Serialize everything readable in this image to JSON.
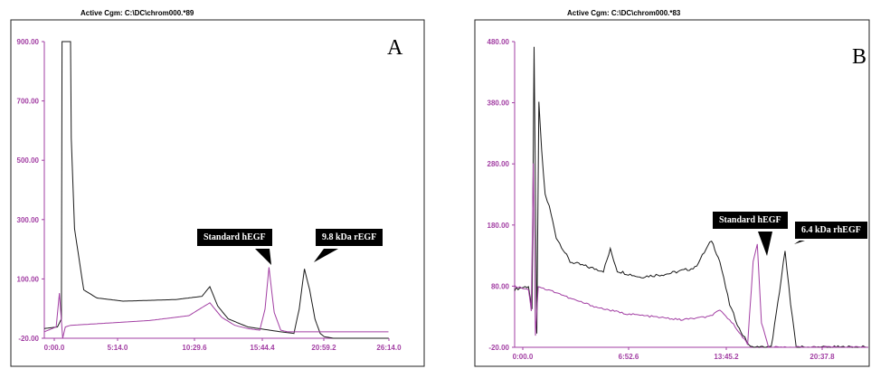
{
  "chart_data": [
    {
      "type": "line",
      "panel_label": "A",
      "header": "Active Cgm: C:\\DC\\chrom000.*89",
      "y_ticks": [
        "900.00",
        "700.00",
        "500.00",
        "300.00",
        "100.00",
        "-20.00"
      ],
      "x_ticks": [
        "0:00.0",
        "5:14.0",
        "10:29.6",
        "15:44.4",
        "20:59.2",
        "26:14.0"
      ],
      "ylim": [
        -20,
        900
      ],
      "xlim": [
        0,
        26.233
      ],
      "annotations": [
        "Standard hEGF",
        "9.8 kDa rEGF"
      ],
      "series": [
        {
          "color": "#1a1a1a",
          "x": [
            0,
            1.0,
            1.3,
            1.35,
            2.0,
            2.05,
            2.3,
            3.0,
            4.0,
            6.0,
            10.0,
            12.0,
            12.6,
            13.2,
            14.0,
            15.5,
            18.0,
            19.0,
            19.4,
            19.8,
            20.2,
            20.6,
            21.0,
            21.3,
            22.0,
            26.2
          ],
          "y": [
            10,
            15,
            40,
            900,
            900,
            600,
            320,
            130,
            105,
            95,
            100,
            110,
            140,
            80,
            40,
            15,
            0,
            -5,
            70,
            195,
            130,
            40,
            -5,
            -15,
            -20,
            -20
          ]
        },
        {
          "color": "#a23ea3",
          "x": [
            0,
            0.9,
            1.15,
            1.4,
            1.6,
            2.0,
            4.0,
            8.0,
            11.0,
            12.6,
            13.5,
            14.5,
            15.5,
            16.4,
            16.8,
            17.1,
            17.5,
            18.0,
            18.5,
            26.2
          ],
          "y": [
            0,
            15,
            120,
            -20,
            15,
            20,
            25,
            35,
            50,
            90,
            45,
            20,
            10,
            5,
            70,
            200,
            60,
            5,
            0,
            0
          ]
        }
      ]
    },
    {
      "type": "line",
      "panel_label": "B",
      "header": "Active Cgm: C:\\DC\\chrom000.*83",
      "y_ticks": [
        "480.00",
        "380.00",
        "280.00",
        "180.00",
        "80.00",
        "-20.00"
      ],
      "x_ticks": [
        "0:00.0",
        "6:52.6",
        "13:45.2",
        "20:37.8"
      ],
      "ylim": [
        -20,
        480
      ],
      "xlim": [
        0,
        25.5
      ],
      "annotations": [
        "Standard hEGF",
        "6.4 kDa rhEGF"
      ],
      "series": [
        {
          "color": "#1a1a1a",
          "x": [
            0,
            1.0,
            1.25,
            1.4,
            1.6,
            1.75,
            1.95,
            2.2,
            2.5,
            3.0,
            4.0,
            5.5,
            6.4,
            6.9,
            7.4,
            9.0,
            11.0,
            13.0,
            14.2,
            14.8,
            15.5,
            16.2,
            17.0,
            18.5,
            19.1,
            19.5,
            19.9,
            20.3,
            21.0,
            25.5
          ],
          "y": [
            75,
            80,
            40,
            470,
            0,
            380,
            300,
            230,
            210,
            160,
            120,
            110,
            105,
            140,
            105,
            95,
            100,
            110,
            155,
            120,
            50,
            10,
            -20,
            -20,
            70,
            140,
            50,
            -20,
            -20,
            -20
          ],
          "noise": 5
        },
        {
          "color": "#a23ea3",
          "x": [
            0,
            1.0,
            1.2,
            1.35,
            1.5,
            1.7,
            2.2,
            3.0,
            4.0,
            6.0,
            8.0,
            10.0,
            12.0,
            14.0,
            14.8,
            15.5,
            16.2,
            16.8,
            17.2,
            17.5,
            17.8,
            18.3,
            25.5
          ],
          "y": [
            80,
            75,
            40,
            280,
            0,
            80,
            75,
            70,
            60,
            45,
            35,
            30,
            25,
            30,
            40,
            25,
            5,
            -15,
            120,
            150,
            20,
            -20,
            -20
          ],
          "noise": 3
        }
      ]
    }
  ]
}
